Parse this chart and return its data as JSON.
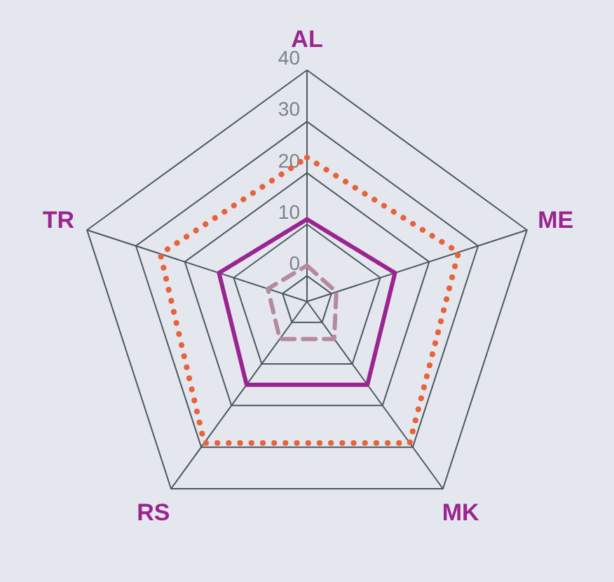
{
  "chart_data": {
    "type": "radar",
    "categories": [
      "AL",
      "ME",
      "MK",
      "RS",
      "TR"
    ],
    "ylim": [
      -5,
      40
    ],
    "yticks": [
      0,
      10,
      20,
      30,
      40
    ],
    "grid": true,
    "series": [
      {
        "color": "#e8623a",
        "line_style": "dotted",
        "values": [
          23,
          26,
          29,
          29,
          25
        ]
      },
      {
        "color": "#9b2590",
        "line_style": "solid",
        "values": [
          11,
          13,
          15,
          15,
          13
        ]
      },
      {
        "color": "#b58a9c",
        "line_style": "dashed",
        "values": [
          2,
          1,
          4,
          4,
          3
        ]
      }
    ]
  }
}
